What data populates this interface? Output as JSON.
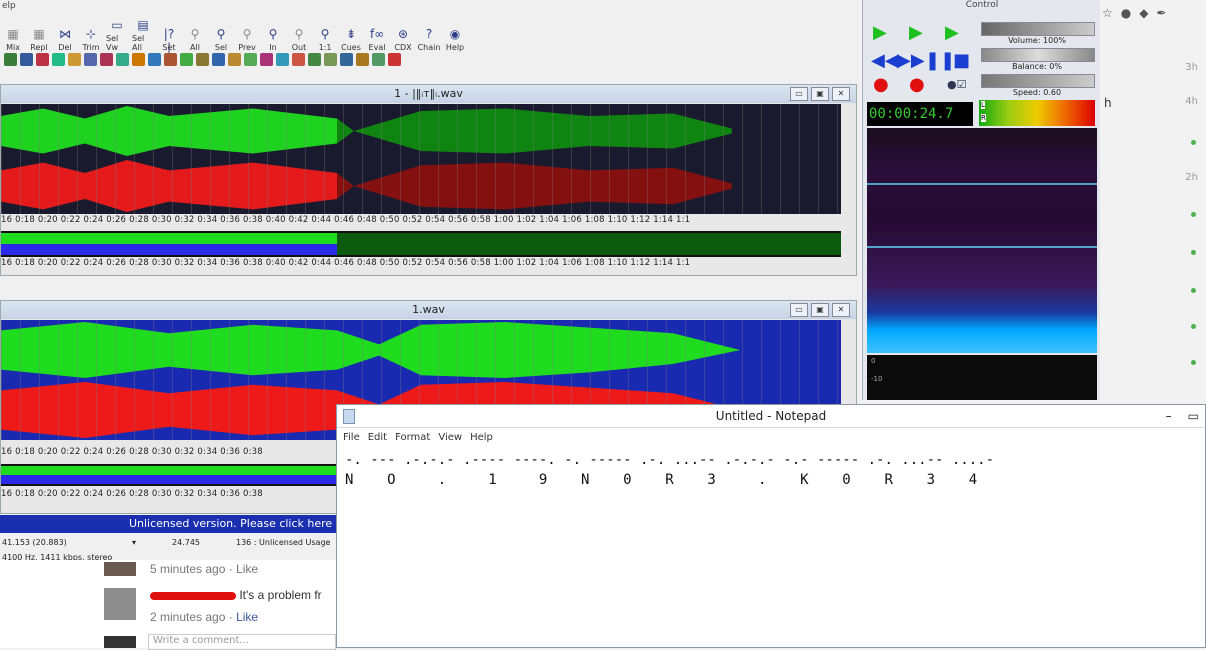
{
  "editor": {
    "menu_fragment": "elp",
    "toolbar": [
      {
        "label": "Mix",
        "icon": "mix-icon",
        "glyph": "▦",
        "dim": true
      },
      {
        "label": "Repl",
        "icon": "replace-icon",
        "glyph": "▦",
        "dim": true
      },
      {
        "label": "Del",
        "icon": "delete-icon",
        "glyph": "⋈",
        "dim": false
      },
      {
        "label": "Trim",
        "icon": "trim-icon",
        "glyph": "⊹",
        "dim": false
      },
      {
        "label": "Sel Vw",
        "icon": "select-view-icon",
        "glyph": "▭",
        "dim": false
      },
      {
        "label": "Sel All",
        "icon": "select-all-icon",
        "glyph": "▤",
        "dim": false
      },
      {
        "label": "Set",
        "icon": "set-icon",
        "glyph": "|?|",
        "dim": false
      },
      {
        "label": "All",
        "icon": "zoom-all-icon",
        "glyph": "⚲",
        "dim": true
      },
      {
        "label": "Sel",
        "icon": "zoom-sel-icon",
        "glyph": "⚲",
        "dim": false
      },
      {
        "label": "Prev",
        "icon": "zoom-prev-icon",
        "glyph": "⚲",
        "dim": true
      },
      {
        "label": "In",
        "icon": "zoom-in-icon",
        "glyph": "⚲",
        "dim": false
      },
      {
        "label": "Out",
        "icon": "zoom-out-icon",
        "glyph": "⚲",
        "dim": true
      },
      {
        "label": "1:1",
        "icon": "zoom-1-1-icon",
        "glyph": "⚲",
        "dim": false
      },
      {
        "label": "Cues",
        "icon": "cues-icon",
        "glyph": "⇟",
        "dim": false
      },
      {
        "label": "Eval",
        "icon": "eval-icon",
        "glyph": "f∞",
        "dim": false
      },
      {
        "label": "CDX",
        "icon": "cdx-icon",
        "glyph": "⊛",
        "dim": false
      },
      {
        "label": "Chain",
        "icon": "chain-icon",
        "glyph": "?",
        "dim": false
      },
      {
        "label": "Help",
        "icon": "help-icon",
        "glyph": "◉",
        "dim": false
      }
    ],
    "wave1": {
      "title": "1 - |‖ᵢᴛ‖ᵢ.wav"
    },
    "wave2": {
      "title": "1.wav"
    },
    "ruler_text": "16 0:18 0:20 0:22 0:24 0:26 0:28 0:30 0:32 0:34 0:36 0:38 0:40 0:42 0:44 0:46 0:48 0:50 0:52 0:54 0:56 0:58 1:00 1:02 1:04 1:06 1:08 1:10 1:12 1:14 1:1",
    "ruler_text_short": "16 0:18 0:20 0:22 0:24 0:26 0:28 0:30 0:32 0:34 0:36 0:38",
    "unlicensed": "Unlicensed version. Please click here t",
    "status": {
      "position": "41.153 (20.883)",
      "cursor": "24.745",
      "usage": "136 : Unlicensed Usage",
      "format": "4100 Hz, 1411 kbps, stereo"
    }
  },
  "control": {
    "title": "Control",
    "volume": "Volume: 100%",
    "balance": "Balance: 0%",
    "speed": "Speed: 0.60",
    "time": "00:00:24.7",
    "meter_l": "L",
    "meter_r": "R",
    "scope_ticks": [
      "0",
      "-10"
    ]
  },
  "browser": {
    "items": [
      "3h",
      "4h",
      "2h"
    ],
    "side_letter": "h"
  },
  "facebook": {
    "first_meta": "5 minutes ago · Like",
    "comment_text": "It's a problem fr",
    "second_time": "2 minutes ago",
    "second_like": "Like",
    "input_placeholder": "Write a comment..."
  },
  "notepad": {
    "title": "Untitled - Notepad",
    "menu": [
      "File",
      "Edit",
      "Format",
      "View",
      "Help"
    ],
    "line1": "-. --- .-.-.- .---- ----. -. ----- .-. ...-- .-.-.- -.- ----- .-. ...-- ....-",
    "line2": "N    O     .     1     9    N    0    R    3     .    K    0    R    3    4"
  },
  "colors": {
    "wave_green": "#1fdc1f",
    "wave_red": "#ee1a1a",
    "wave_bg": "#1a1a2e",
    "unlicensed_bar": "#1a2fb0"
  }
}
